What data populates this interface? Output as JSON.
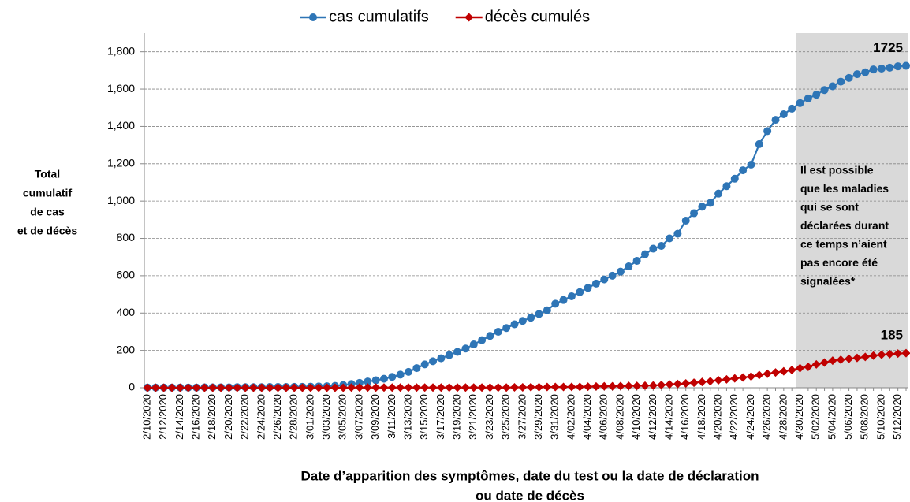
{
  "chart_data": {
    "type": "line",
    "legend": "top",
    "ylabel": [
      "Total",
      "cumulatif",
      "de cas",
      "et de décès"
    ],
    "xlabel": [
      "Date d’apparition des symptômes, date du test ou la date de déclaration",
      "ou date de décès"
    ],
    "annotation": [
      "Il est possible",
      "que les maladies",
      "qui se sont",
      "déclarées durant",
      "ce temps n’aient",
      "pas encore été",
      "signalées*"
    ],
    "categories": [
      "2/10/2020",
      null,
      "2/12/2020",
      null,
      "2/14/2020",
      null,
      "2/16/2020",
      null,
      "2/18/2020",
      null,
      "2/20/2020",
      null,
      "2/22/2020",
      null,
      "2/24/2020",
      null,
      "2/26/2020",
      null,
      "2/28/2020",
      null,
      "3/01/2020",
      null,
      "3/03/2020",
      null,
      "3/05/2020",
      null,
      "3/07/2020",
      null,
      "3/09/2020",
      null,
      "3/11/2020",
      null,
      "3/13/2020",
      null,
      "3/15/2020",
      null,
      "3/17/2020",
      null,
      "3/19/2020",
      null,
      "3/21/2020",
      null,
      "3/23/2020",
      null,
      "3/25/2020",
      null,
      "3/27/2020",
      null,
      "3/29/2020",
      null,
      "3/31/2020",
      null,
      "4/02/2020",
      null,
      "4/04/2020",
      null,
      "4/06/2020",
      null,
      "4/08/2020",
      null,
      "4/10/2020",
      null,
      "4/12/2020",
      null,
      "4/14/2020",
      null,
      "4/16/2020",
      null,
      "4/18/2020",
      null,
      "4/20/2020",
      null,
      "4/22/2020",
      null,
      "4/24/2020",
      null,
      "4/26/2020",
      null,
      "4/28/2020",
      null,
      "4/30/2020",
      null,
      "5/02/2020",
      null,
      "5/04/2020",
      null,
      "5/06/2020",
      null,
      "5/08/2020",
      null,
      "5/10/2020",
      null,
      "5/12/2020",
      null
    ],
    "series": [
      {
        "name": "cas cumulatifs",
        "color": "#2e75b6",
        "marker": "circle",
        "values": [
          1,
          1,
          1,
          1,
          1,
          1,
          1,
          2,
          2,
          2,
          2,
          3,
          3,
          3,
          3,
          4,
          4,
          4,
          5,
          5,
          6,
          7,
          8,
          10,
          14,
          20,
          26,
          33,
          40,
          48,
          58,
          70,
          85,
          105,
          125,
          142,
          158,
          175,
          192,
          210,
          232,
          255,
          278,
          300,
          320,
          340,
          358,
          375,
          395,
          415,
          450,
          470,
          490,
          512,
          535,
          558,
          580,
          600,
          622,
          650,
          680,
          715,
          745,
          760,
          800,
          825,
          895,
          935,
          970,
          990,
          1040,
          1080,
          1120,
          1165,
          1195,
          1305,
          1375,
          1435,
          1465,
          1495,
          1525,
          1550,
          1570,
          1595,
          1615,
          1640,
          1660,
          1680,
          1690,
          1705,
          1710,
          1715,
          1722,
          1725
        ]
      },
      {
        "name": "décès cumulés",
        "color": "#c00000",
        "marker": "diamond",
        "values": [
          0,
          0,
          0,
          0,
          0,
          0,
          0,
          0,
          0,
          0,
          0,
          0,
          0,
          0,
          0,
          0,
          0,
          0,
          0,
          0,
          0,
          0,
          0,
          0,
          0,
          1,
          1,
          1,
          1,
          1,
          1,
          1,
          1,
          1,
          1,
          1,
          1,
          1,
          1,
          1,
          1,
          1,
          1,
          1,
          1,
          2,
          2,
          3,
          3,
          4,
          4,
          4,
          5,
          5,
          6,
          7,
          8,
          8,
          9,
          10,
          10,
          11,
          12,
          15,
          18,
          20,
          23,
          27,
          31,
          35,
          40,
          45,
          50,
          55,
          60,
          68,
          75,
          82,
          88,
          95,
          105,
          112,
          125,
          135,
          145,
          150,
          155,
          160,
          165,
          172,
          177,
          180,
          183,
          185
        ]
      }
    ],
    "ylim": [
      0,
      1900
    ],
    "yticks": [
      0,
      200,
      400,
      600,
      800,
      {
        "value": 1000,
        "label": "1,000"
      },
      {
        "value": 1200,
        "label": "1,200"
      },
      {
        "value": 1400,
        "label": "1,400"
      },
      {
        "value": 1600,
        "label": "1,600"
      },
      {
        "value": 1800,
        "label": "1,800"
      }
    ],
    "grid": true
  }
}
